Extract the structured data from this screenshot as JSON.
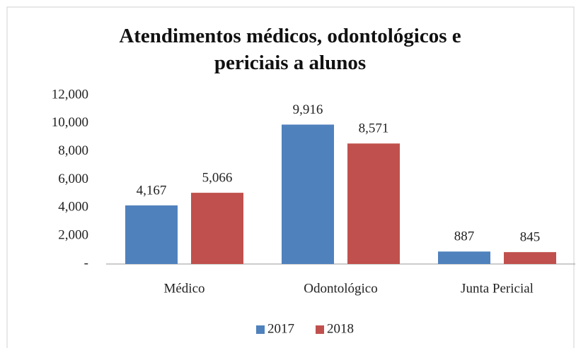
{
  "chart_data": {
    "type": "bar",
    "title": "Atendimentos médicos, odontológicos e periciais a alunos",
    "categories": [
      "Médico",
      "Odontológico",
      "Junta Pericial"
    ],
    "series": [
      {
        "name": "2017",
        "color": "#4f81bd",
        "values": [
          4167,
          9916,
          887
        ],
        "value_labels": [
          "4,167",
          "9,916",
          "887"
        ]
      },
      {
        "name": "2018",
        "color": "#c0504d",
        "values": [
          5066,
          8571,
          845
        ],
        "value_labels": [
          "5,066",
          "8,571",
          "845"
        ]
      }
    ],
    "ylim": [
      0,
      12000
    ],
    "yticks": [
      {
        "value": 0,
        "label": "-"
      },
      {
        "value": 2000,
        "label": "2,000"
      },
      {
        "value": 4000,
        "label": "4,000"
      },
      {
        "value": 6000,
        "label": "6,000"
      },
      {
        "value": 8000,
        "label": "8,000"
      },
      {
        "value": 10000,
        "label": "10,000"
      },
      {
        "value": 12000,
        "label": "12,000"
      }
    ],
    "grid": false,
    "legend": "bottom"
  }
}
